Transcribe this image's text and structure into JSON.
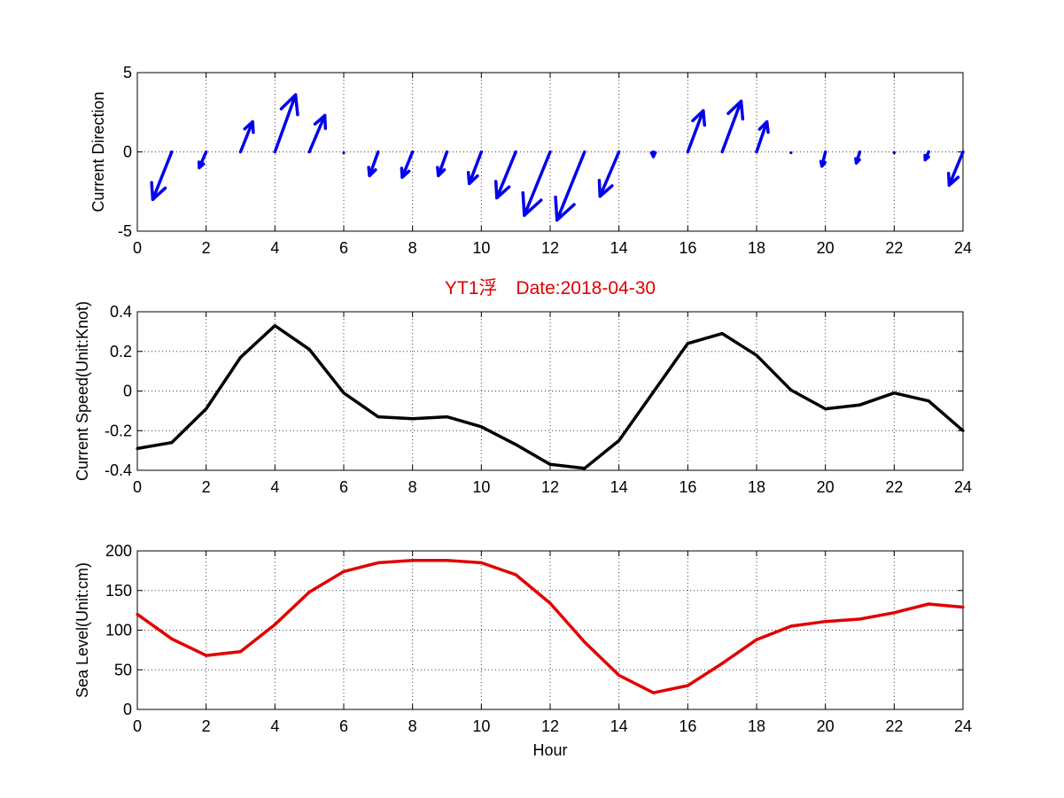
{
  "figure_title": "YT1浮　Date:2018-04-30",
  "title_color": "#e00000",
  "chart_data": [
    {
      "type": "quiver",
      "ylabel": "Current Direction",
      "xlabel": "",
      "xlim": [
        0,
        24
      ],
      "ylim": [
        -5,
        5
      ],
      "xticks": [
        "0",
        "2",
        "4",
        "6",
        "8",
        "10",
        "12",
        "14",
        "16",
        "18",
        "20",
        "22",
        "24"
      ],
      "yticks": [
        "5",
        "0",
        "-5"
      ],
      "grid": true,
      "color": "#0000ee",
      "vectors": [
        {
          "x": 1,
          "u": -0.55,
          "v": -3.0
        },
        {
          "x": 2,
          "u": -0.2,
          "v": -1.0
        },
        {
          "x": 3,
          "u": 0.35,
          "v": 1.9
        },
        {
          "x": 4,
          "u": 0.6,
          "v": 3.6
        },
        {
          "x": 5,
          "u": 0.45,
          "v": 2.3
        },
        {
          "x": 6,
          "u": 0,
          "v": 0
        },
        {
          "x": 7,
          "u": -0.25,
          "v": -1.5
        },
        {
          "x": 8,
          "u": -0.3,
          "v": -1.6
        },
        {
          "x": 9,
          "u": -0.25,
          "v": -1.5
        },
        {
          "x": 10,
          "u": -0.35,
          "v": -2.0
        },
        {
          "x": 11,
          "u": -0.55,
          "v": -2.9
        },
        {
          "x": 12,
          "u": -0.75,
          "v": -4.0
        },
        {
          "x": 13,
          "u": -0.8,
          "v": -4.3
        },
        {
          "x": 14,
          "u": -0.55,
          "v": -2.8
        },
        {
          "x": 15,
          "u": 0,
          "v": -0.3
        },
        {
          "x": 16,
          "u": 0.45,
          "v": 2.6
        },
        {
          "x": 17,
          "u": 0.55,
          "v": 3.2
        },
        {
          "x": 18,
          "u": 0.3,
          "v": 1.9
        },
        {
          "x": 19,
          "u": 0,
          "v": 0
        },
        {
          "x": 20,
          "u": -0.1,
          "v": -0.9
        },
        {
          "x": 21,
          "u": -0.1,
          "v": -0.7
        },
        {
          "x": 22,
          "u": 0,
          "v": 0
        },
        {
          "x": 23,
          "u": -0.1,
          "v": -0.5
        },
        {
          "x": 24,
          "u": -0.4,
          "v": -2.1
        }
      ]
    },
    {
      "type": "line",
      "ylabel": "Current Speed(Unit:Knot)",
      "xlabel": "",
      "xlim": [
        0,
        24
      ],
      "ylim": [
        -0.4,
        0.4
      ],
      "xticks": [
        "0",
        "2",
        "4",
        "6",
        "8",
        "10",
        "12",
        "14",
        "16",
        "18",
        "20",
        "22",
        "24"
      ],
      "yticks": [
        "0.4",
        "0.2",
        "0",
        "-0.2",
        "-0.4"
      ],
      "grid": true,
      "color": "#000000",
      "x": [
        0,
        1,
        2,
        3,
        4,
        5,
        6,
        7,
        8,
        9,
        10,
        11,
        12,
        13,
        14,
        15,
        16,
        17,
        18,
        19,
        20,
        21,
        22,
        23,
        24
      ],
      "y": [
        -0.29,
        -0.26,
        -0.09,
        0.17,
        0.33,
        0.21,
        -0.01,
        -0.13,
        -0.14,
        -0.13,
        -0.18,
        -0.27,
        -0.37,
        -0.39,
        -0.25,
        -0.005,
        0.24,
        0.29,
        0.18,
        0.005,
        -0.09,
        -0.07,
        -0.01,
        -0.05,
        -0.2
      ]
    },
    {
      "type": "line",
      "ylabel": "Sea Level(Unit:cm)",
      "xlabel": "Hour",
      "xlim": [
        0,
        24
      ],
      "ylim": [
        0,
        200
      ],
      "xticks": [
        "0",
        "2",
        "4",
        "6",
        "8",
        "10",
        "12",
        "14",
        "16",
        "18",
        "20",
        "22",
        "24"
      ],
      "yticks": [
        "200",
        "150",
        "100",
        "50",
        "0"
      ],
      "grid": true,
      "color": "#e00000",
      "x": [
        0,
        1,
        2,
        3,
        4,
        5,
        6,
        7,
        8,
        9,
        10,
        11,
        12,
        13,
        14,
        15,
        16,
        17,
        18,
        19,
        20,
        21,
        22,
        23,
        24
      ],
      "y": [
        120,
        89,
        68,
        73,
        107,
        148,
        174,
        185,
        188,
        188,
        185,
        170,
        134,
        85,
        43,
        21,
        30,
        58,
        88,
        105,
        111,
        114,
        122,
        133,
        129
      ]
    }
  ]
}
